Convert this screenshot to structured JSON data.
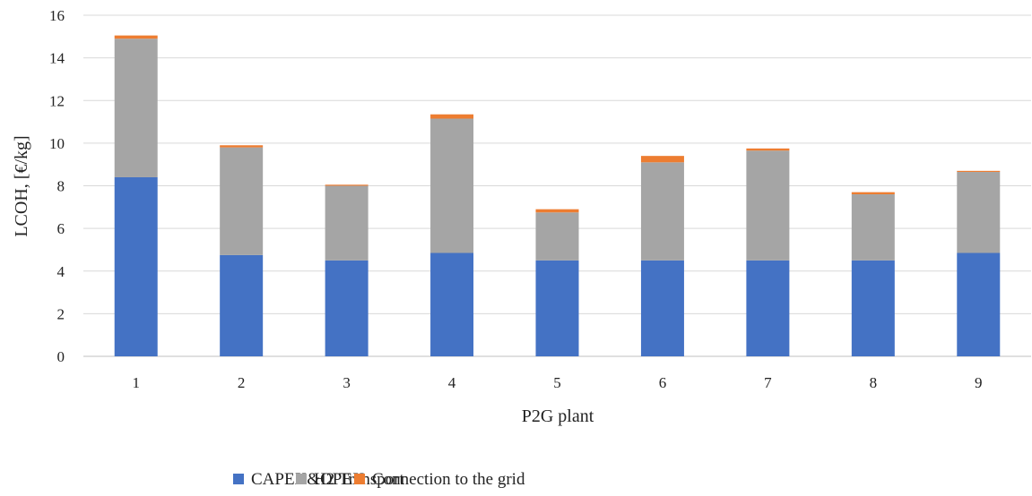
{
  "chart_data": {
    "type": "bar",
    "stacked": true,
    "title": "",
    "xlabel": "P2G plant",
    "ylabel": "LCOH, [€/kg]",
    "ylim": [
      0,
      16
    ],
    "yticks": [
      0,
      2,
      4,
      6,
      8,
      10,
      12,
      14,
      16
    ],
    "grid": true,
    "legend_position": "bottom",
    "categories": [
      "1",
      "2",
      "3",
      "4",
      "5",
      "6",
      "7",
      "8",
      "9"
    ],
    "series": [
      {
        "name": "CAPEX&OPEX",
        "color": "#4472c4",
        "values": [
          8.4,
          4.75,
          4.5,
          4.85,
          4.5,
          4.5,
          4.5,
          4.5,
          4.85
        ]
      },
      {
        "name": "H2 Transport",
        "color": "#a5a5a5",
        "values": [
          6.5,
          5.05,
          3.5,
          6.3,
          2.25,
          4.6,
          5.15,
          3.1,
          3.8
        ]
      },
      {
        "name": "Connection to the grid",
        "color": "#ed7d31",
        "values": [
          0.15,
          0.1,
          0.05,
          0.2,
          0.15,
          0.3,
          0.1,
          0.1,
          0.05
        ]
      }
    ]
  }
}
